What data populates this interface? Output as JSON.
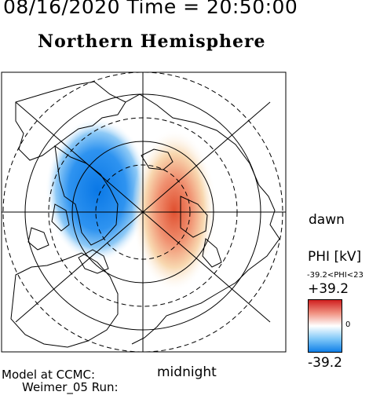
{
  "header": {
    "title": "08/16/2020 Time = 20:50:00",
    "hemisphere": "Northern Hemisphere"
  },
  "map": {
    "local_time_labels": {
      "dawn": "dawn",
      "midnight": "midnight"
    },
    "grid": "polar circles and radial local-time lines",
    "potential_pattern": {
      "negative_cell": "dusk side, blue",
      "positive_cell": "dawn side, red"
    }
  },
  "colorbar": {
    "title": "PHI [kV]",
    "range_text": "-39.2<PHI<23",
    "max_label": "+39.2",
    "zero_label": "0",
    "min_label": "-39.2",
    "colors": {
      "max": "#d02020",
      "zero": "#ffffff",
      "min": "#1080e8"
    }
  },
  "footer": {
    "model_line1": "Model at CCMC:",
    "model_line2": "Weimer_05 Run:"
  }
}
